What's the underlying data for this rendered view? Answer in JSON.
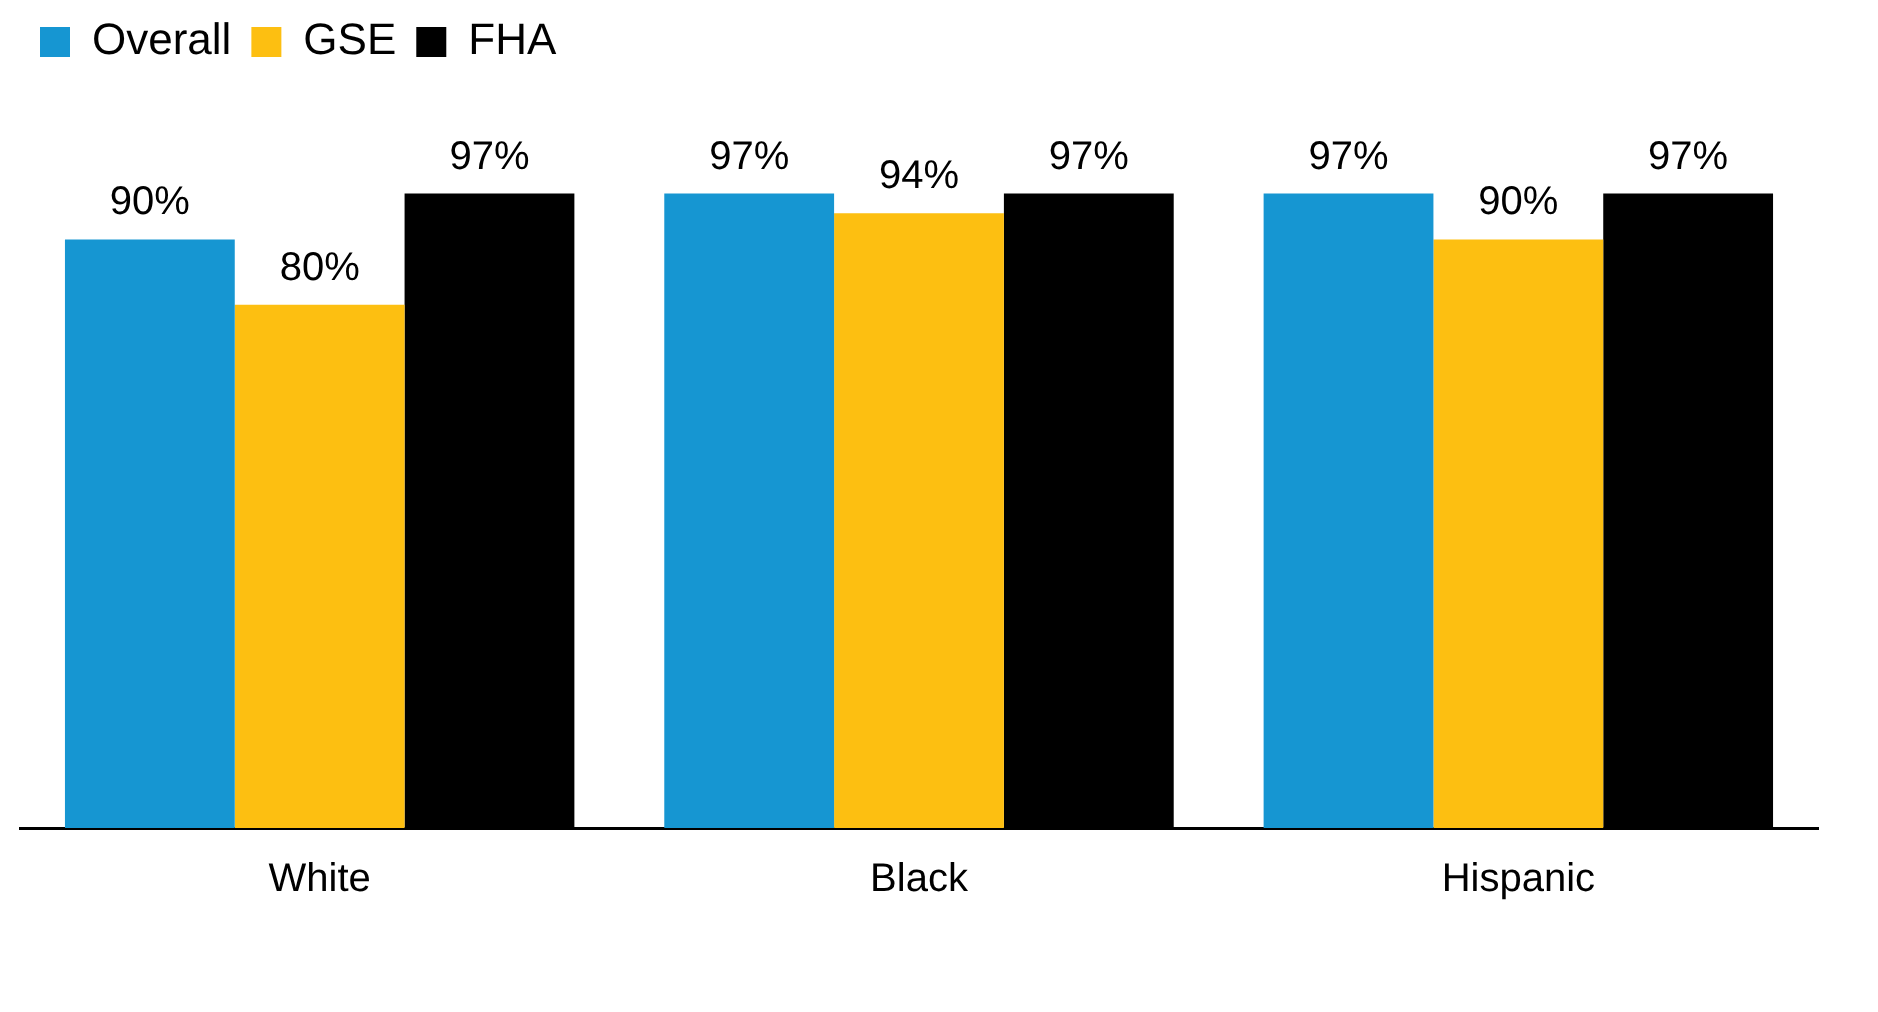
{
  "chart_data": {
    "type": "bar",
    "categories": [
      "White",
      "Black",
      "Hispanic"
    ],
    "series": [
      {
        "name": "Overall",
        "color": "#1696d2",
        "values": [
          90,
          97,
          97
        ],
        "value_labels": [
          "90%",
          "97%",
          "97%"
        ]
      },
      {
        "name": "GSE",
        "color": "#fdbf11",
        "values": [
          80,
          94,
          90
        ],
        "value_labels": [
          "80%",
          "94%",
          "90%"
        ]
      },
      {
        "name": "FHA",
        "color": "#000000",
        "values": [
          97,
          97,
          97
        ],
        "value_labels": [
          "97%",
          "97%",
          "97%"
        ]
      }
    ],
    "legend": "top left",
    "grid": false,
    "tick_labels": "x"
  }
}
